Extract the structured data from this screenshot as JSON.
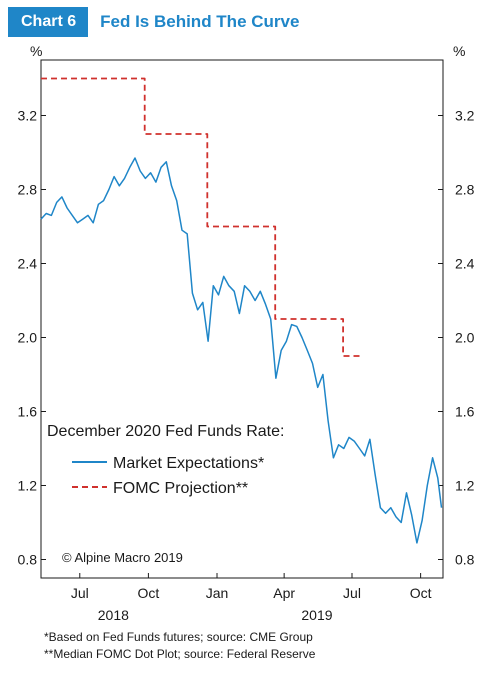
{
  "header": {
    "badge": "Chart 6",
    "title": "Fed Is Behind The Curve"
  },
  "copyright": "© Alpine Macro 2019",
  "footnotes": [
    "*Based on Fed Funds futures; source: CME Group",
    "**Median FOMC Dot Plot; source: Federal Reserve"
  ],
  "colors": {
    "accent": "#1f86c8",
    "market_line": "#1f86c8",
    "fomc_line": "#d0312d"
  },
  "chart_data": {
    "type": "line",
    "title": "Fed Is Behind The Curve",
    "legend_title": "December 2020 Fed Funds Rate:",
    "legend_position": "center-left",
    "grid": false,
    "y_unit_left": "%",
    "y_unit_right": "%",
    "ylim": [
      0.7,
      3.5
    ],
    "y_ticks": [
      0.8,
      1.2,
      1.6,
      2.0,
      2.4,
      2.8,
      3.2
    ],
    "y_tick_labels": [
      "0.8",
      "1.2",
      "1.6",
      "2.0",
      "2.4",
      "2.8",
      "3.2"
    ],
    "xlim": [
      "2018-05-10",
      "2019-10-31"
    ],
    "x_ticks": [
      "2018-07-01",
      "2018-10-01",
      "2019-01-01",
      "2019-04-01",
      "2019-07-01",
      "2019-10-01"
    ],
    "x_tick_labels": [
      "Jul",
      "Oct",
      "Jan",
      "Apr",
      "Jul",
      "Oct"
    ],
    "year_labels": [
      {
        "label": "2018",
        "date": "2018-08-15"
      },
      {
        "label": "2019",
        "date": "2019-05-15"
      }
    ],
    "series": [
      {
        "name": "Market Expectations*",
        "style": "solid",
        "color": "#1f86c8",
        "points": [
          [
            "2018-05-10",
            2.64
          ],
          [
            "2018-05-17",
            2.67
          ],
          [
            "2018-05-24",
            2.66
          ],
          [
            "2018-05-31",
            2.73
          ],
          [
            "2018-06-07",
            2.76
          ],
          [
            "2018-06-14",
            2.7
          ],
          [
            "2018-06-21",
            2.66
          ],
          [
            "2018-06-28",
            2.62
          ],
          [
            "2018-07-05",
            2.64
          ],
          [
            "2018-07-12",
            2.66
          ],
          [
            "2018-07-19",
            2.62
          ],
          [
            "2018-07-26",
            2.72
          ],
          [
            "2018-08-02",
            2.74
          ],
          [
            "2018-08-09",
            2.8
          ],
          [
            "2018-08-16",
            2.87
          ],
          [
            "2018-08-23",
            2.82
          ],
          [
            "2018-08-30",
            2.86
          ],
          [
            "2018-09-06",
            2.92
          ],
          [
            "2018-09-13",
            2.97
          ],
          [
            "2018-09-20",
            2.9
          ],
          [
            "2018-09-27",
            2.86
          ],
          [
            "2018-10-04",
            2.89
          ],
          [
            "2018-10-11",
            2.84
          ],
          [
            "2018-10-18",
            2.92
          ],
          [
            "2018-10-25",
            2.95
          ],
          [
            "2018-11-01",
            2.82
          ],
          [
            "2018-11-08",
            2.74
          ],
          [
            "2018-11-15",
            2.58
          ],
          [
            "2018-11-22",
            2.56
          ],
          [
            "2018-11-29",
            2.24
          ],
          [
            "2018-12-06",
            2.15
          ],
          [
            "2018-12-13",
            2.19
          ],
          [
            "2018-12-20",
            1.98
          ],
          [
            "2018-12-27",
            2.28
          ],
          [
            "2019-01-03",
            2.23
          ],
          [
            "2019-01-10",
            2.33
          ],
          [
            "2019-01-17",
            2.28
          ],
          [
            "2019-01-24",
            2.25
          ],
          [
            "2019-01-31",
            2.13
          ],
          [
            "2019-02-07",
            2.28
          ],
          [
            "2019-02-14",
            2.25
          ],
          [
            "2019-02-21",
            2.2
          ],
          [
            "2019-02-28",
            2.25
          ],
          [
            "2019-03-07",
            2.18
          ],
          [
            "2019-03-14",
            2.1
          ],
          [
            "2019-03-21",
            1.78
          ],
          [
            "2019-03-28",
            1.93
          ],
          [
            "2019-04-04",
            1.98
          ],
          [
            "2019-04-11",
            2.07
          ],
          [
            "2019-04-18",
            2.06
          ],
          [
            "2019-04-25",
            2.0
          ],
          [
            "2019-05-02",
            1.93
          ],
          [
            "2019-05-09",
            1.86
          ],
          [
            "2019-05-16",
            1.73
          ],
          [
            "2019-05-23",
            1.8
          ],
          [
            "2019-05-30",
            1.55
          ],
          [
            "2019-06-06",
            1.35
          ],
          [
            "2019-06-13",
            1.42
          ],
          [
            "2019-06-20",
            1.4
          ],
          [
            "2019-06-27",
            1.46
          ],
          [
            "2019-07-04",
            1.44
          ],
          [
            "2019-07-11",
            1.4
          ],
          [
            "2019-07-18",
            1.36
          ],
          [
            "2019-07-25",
            1.45
          ],
          [
            "2019-08-01",
            1.26
          ],
          [
            "2019-08-08",
            1.08
          ],
          [
            "2019-08-15",
            1.05
          ],
          [
            "2019-08-22",
            1.08
          ],
          [
            "2019-08-29",
            1.03
          ],
          [
            "2019-09-05",
            1.0
          ],
          [
            "2019-09-12",
            1.16
          ],
          [
            "2019-09-19",
            1.04
          ],
          [
            "2019-09-26",
            0.89
          ],
          [
            "2019-10-03",
            1.01
          ],
          [
            "2019-10-10",
            1.2
          ],
          [
            "2019-10-17",
            1.35
          ],
          [
            "2019-10-24",
            1.24
          ],
          [
            "2019-10-29",
            1.08
          ]
        ]
      },
      {
        "name": "FOMC Projection**",
        "style": "dashed",
        "color": "#d0312d",
        "points": [
          [
            "2018-05-10",
            3.4
          ],
          [
            "2018-09-26",
            3.4
          ],
          [
            "2018-09-26",
            3.1
          ],
          [
            "2018-12-19",
            3.1
          ],
          [
            "2018-12-19",
            2.6
          ],
          [
            "2019-03-20",
            2.6
          ],
          [
            "2019-03-20",
            2.1
          ],
          [
            "2019-06-19",
            2.1
          ],
          [
            "2019-06-19",
            1.9
          ],
          [
            "2019-07-15",
            1.9
          ]
        ]
      }
    ]
  }
}
